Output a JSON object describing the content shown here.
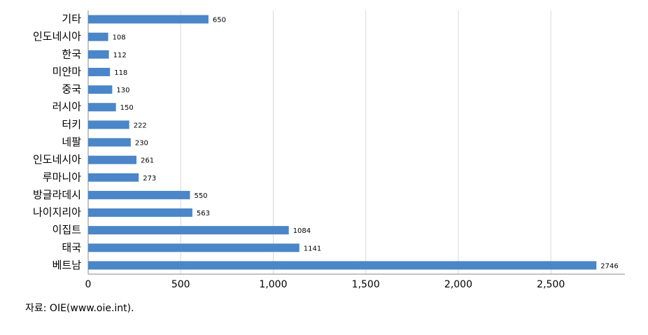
{
  "chart_data": {
    "type": "barh",
    "categories": [
      "기타",
      "인도네시아",
      "한국",
      "미얀마",
      "중국",
      "러시아",
      "터키",
      "네팔",
      "인도네시아",
      "루마니아",
      "방글라데시",
      "나이지리아",
      "이집트",
      "태국",
      "베트남"
    ],
    "values": [
      650,
      108,
      112,
      118,
      130,
      150,
      222,
      230,
      261,
      273,
      550,
      563,
      1084,
      1141,
      2746
    ],
    "color": "#4a86c8",
    "xlim": [
      0,
      2900
    ],
    "xticks": [
      0,
      500,
      {
        "value": 1000,
        "label": "1,000"
      },
      {
        "value": 1500,
        "label": "1,500"
      },
      {
        "value": 2000,
        "label": "2,000"
      },
      {
        "value": 2500,
        "label": "2,500"
      }
    ],
    "grid": true,
    "source": "자료: OIE(www.oie.int)."
  }
}
